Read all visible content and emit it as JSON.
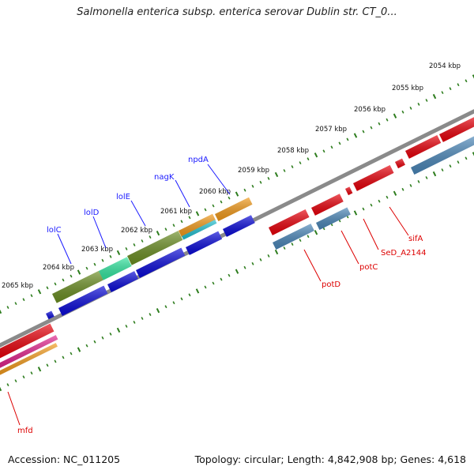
{
  "title": "Salmonella enterica subsp. enterica serovar Dublin str. CT_0...",
  "footer": {
    "accession": "Accession: NC_011205",
    "summary": "Topology: circular; Length: 4,842,908 bp; Genes: 4,618"
  },
  "ticks": [
    {
      "label": "2054 kbp"
    },
    {
      "label": "2055 kbp"
    },
    {
      "label": "2056 kbp"
    },
    {
      "label": "2057 kbp"
    },
    {
      "label": "2058 kbp"
    },
    {
      "label": "2059 kbp"
    },
    {
      "label": "2060 kbp"
    },
    {
      "label": "2061 kbp"
    },
    {
      "label": "2062 kbp"
    },
    {
      "label": "2063 kbp"
    },
    {
      "label": "2064 kbp"
    },
    {
      "label": "2065 kbp"
    }
  ],
  "genes_forward": [
    {
      "label": "npdA"
    },
    {
      "label": "nagK"
    },
    {
      "label": "lolE"
    },
    {
      "label": "lolD"
    },
    {
      "label": "lolC"
    }
  ],
  "genes_reverse": [
    {
      "label": "sifA"
    },
    {
      "label": "SeD_A2144"
    },
    {
      "label": "potC"
    },
    {
      "label": "potD"
    },
    {
      "label": "mfd"
    }
  ],
  "colors": {
    "backbone": "#8a8a8a",
    "tick_green": "#2e7d1e",
    "label_blue": "#1a1aff",
    "label_red": "#dd0000",
    "cds_red": "#e8000a",
    "cds_blue": "#0a0ad8",
    "cds_steel": "#4a86b8",
    "cds_olive": "#6b8e23",
    "cds_spring": "#33e6a0",
    "cds_orange": "#f29a1a",
    "cds_cyan": "#22c0d0",
    "cds_magenta": "#e0208a"
  }
}
